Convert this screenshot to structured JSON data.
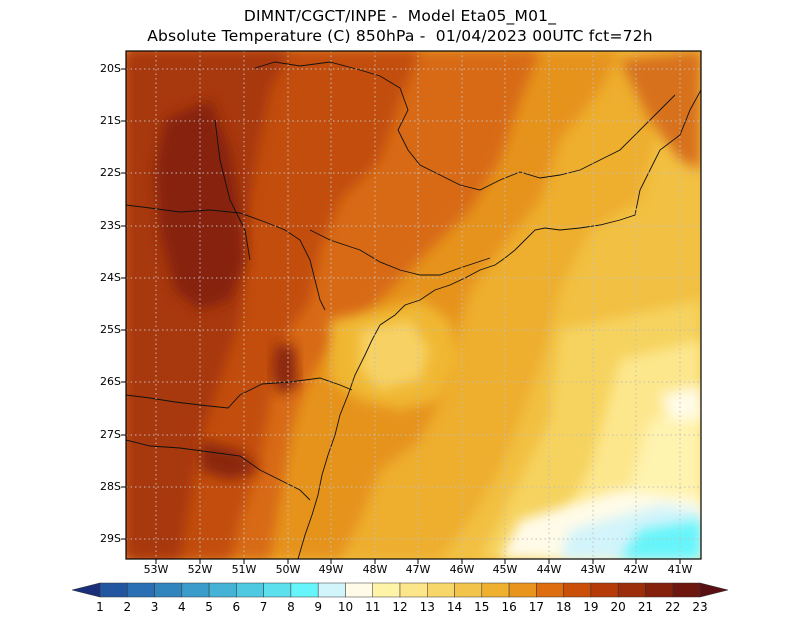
{
  "header": {
    "line1": "DIMNT/CGCT/INPE -  Model Eta05_M01_",
    "line2": "Absolute Temperature (C) 850hPa -  01/04/2023 00UTC fct=72h"
  },
  "map": {
    "lat_labels": [
      "20S",
      "21S",
      "22S",
      "23S",
      "24S",
      "25S",
      "26S",
      "27S",
      "28S",
      "29S"
    ],
    "lon_labels": [
      "53W",
      "52W",
      "51W",
      "50W",
      "49W",
      "48W",
      "47W",
      "46W",
      "45W",
      "44W",
      "43W",
      "42W",
      "41W"
    ],
    "grid": "dotted"
  },
  "colorbar": {
    "labels": [
      "1",
      "2",
      "3",
      "4",
      "5",
      "6",
      "7",
      "8",
      "9",
      "10",
      "11",
      "12",
      "13",
      "14",
      "15",
      "16",
      "17",
      "18",
      "19",
      "20",
      "21",
      "22",
      "23"
    ],
    "colors": [
      "#1f3f8f",
      "#2356a0",
      "#2a6eb3",
      "#3185bf",
      "#3a9ccb",
      "#45b3d6",
      "#4fc9e2",
      "#5de0ee",
      "#66f5fa",
      "#d2f4fb",
      "#fffbe8",
      "#fff3a8",
      "#fde58a",
      "#f8d76a",
      "#f3c44b",
      "#eeb02e",
      "#e9941c",
      "#de6d0f",
      "#ca500a",
      "#b53c08",
      "#9c2e0b",
      "#84210c",
      "#6e1610"
    ],
    "arrow_low": "#1a2f7a",
    "arrow_high": "#5a0f12"
  }
}
